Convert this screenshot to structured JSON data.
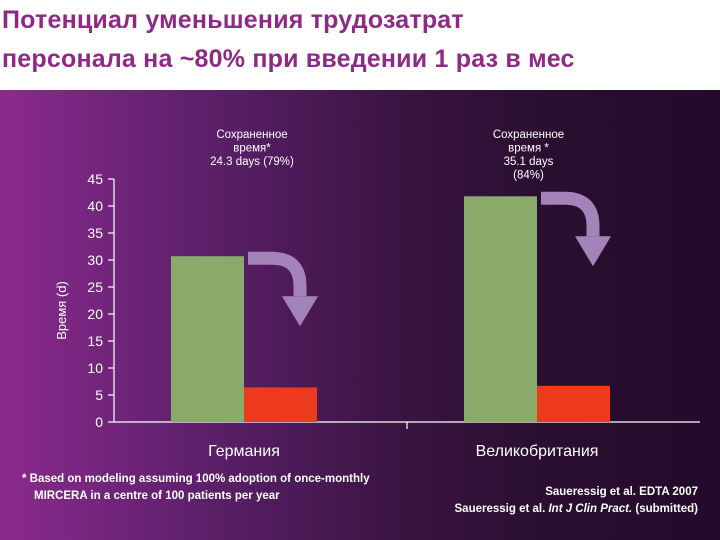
{
  "title": {
    "line1": "Потенциал уменьшения трудозатрат",
    "line2": "персонала на  ~80% при введении 1 раз в мес"
  },
  "colors": {
    "title": "#8e2a86",
    "bar_current": "#8aaa6a",
    "bar_reduced": "#ee3a1c",
    "arrow": "#a383b8",
    "axis": "#ffffff"
  },
  "chart_data": {
    "type": "bar",
    "ylabel": "Время (d)",
    "ylim": [
      0,
      45
    ],
    "yticks": [
      0,
      5,
      10,
      15,
      20,
      25,
      30,
      35,
      40,
      45
    ],
    "categories": [
      "Германия",
      "Великобритания"
    ],
    "series": [
      {
        "name": "",
        "values": [
          30.7,
          41.8
        ]
      },
      {
        "name": "",
        "values": [
          6.4,
          6.7
        ]
      }
    ],
    "annotations": [
      {
        "category": "Германия",
        "lines": [
          "Сохраненное",
          "время*",
          "24.3 days (79%)"
        ]
      },
      {
        "category": "Великобритания",
        "lines": [
          "Сохраненное",
          "время *",
          "35.1 days",
          "(84%)"
        ]
      }
    ],
    "grid": false
  },
  "footnotes": {
    "model_line1": "* Based on modeling assuming 100% adoption of once-monthly",
    "model_line2": "MIRCERA in a centre of 100 patients per year",
    "ref1": "Saueressig et al. EDTA 2007",
    "ref2_prefix": "Saueressig et al. ",
    "ref2_journal": "Int J Clin Pract.",
    "ref2_suffix": " (submitted)"
  }
}
